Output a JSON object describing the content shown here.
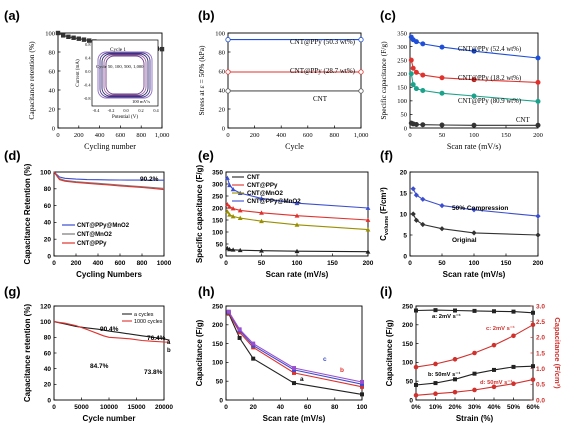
{
  "chart_data": [
    {
      "panel": "(a)",
      "type": "line",
      "xlabel": "Cycling number",
      "ylabel": "Capacitance retention (%)",
      "xlim": [
        0,
        1000
      ],
      "ylim": [
        0,
        100
      ],
      "xticks": [
        "0",
        "200",
        "400",
        "600",
        "800",
        "1,000"
      ],
      "yticks": [
        "0",
        "20",
        "40",
        "60",
        "80",
        "100"
      ],
      "series": [
        {
          "x": [
            0,
            50,
            100,
            150,
            200,
            250,
            300,
            350,
            400,
            450,
            500,
            550,
            600,
            650,
            700,
            750,
            800,
            850,
            900,
            950,
            1000
          ],
          "y": [
            100,
            97.5,
            96,
            95,
            94,
            93,
            92,
            91,
            90,
            89,
            88,
            87.5,
            87,
            86.5,
            86,
            85.5,
            85,
            84.5,
            84,
            83.5,
            83
          ],
          "color": "#333333"
        }
      ],
      "inset": {
        "xlabel": "Potential (V)",
        "ylabel": "Current (mA)",
        "xticks": [
          "-0.4",
          "-0.2",
          "0.0",
          "0.2",
          "0.4"
        ],
        "yticks": [
          "-0.8",
          "-0.4",
          "0.0",
          "0.4",
          "0.8"
        ],
        "annotations": [
          "Cycle 1",
          "Cycle 50, 100, 500, 1,000",
          "100 mV/s"
        ]
      }
    },
    {
      "panel": "(b)",
      "type": "line",
      "xlabel": "Cycle",
      "ylabel": "Stress at ε = 50% (kPa)",
      "xlim": [
        0,
        1000
      ],
      "ylim": [
        0,
        100
      ],
      "xticks": [
        "0",
        "200",
        "400",
        "600",
        "800",
        "1,000"
      ],
      "yticks": [
        "0",
        "20",
        "40",
        "60",
        "80",
        "100"
      ],
      "series": [
        {
          "name": "CNT@PPy (50.3 wt%)",
          "color": "#1f4fd8",
          "x": [
            0,
            1000
          ],
          "y": [
            93,
            93
          ]
        },
        {
          "name": "CNT@PPy (28.7 wt%)",
          "color": "#e0322d",
          "x": [
            0,
            1000
          ],
          "y": [
            59,
            59
          ]
        },
        {
          "name": "CNT",
          "color": "#555555",
          "x": [
            0,
            1000
          ],
          "y": [
            39,
            39
          ]
        }
      ]
    },
    {
      "panel": "(c)",
      "type": "line",
      "xlabel": "Scan rate (mV/s)",
      "ylabel": "Specific capacitance (F/g)",
      "xlim": [
        0,
        200
      ],
      "ylim": [
        0,
        350
      ],
      "xticks": [
        "0",
        "50",
        "100",
        "150",
        "200"
      ],
      "yticks": [
        "0",
        "50",
        "100",
        "150",
        "200",
        "250",
        "300",
        "350"
      ],
      "series": [
        {
          "name": "CNT@PPy (52.4 wt%)",
          "color": "#1f4fd8",
          "x": [
            2,
            5,
            10,
            20,
            50,
            100,
            200
          ],
          "y": [
            335,
            325,
            318,
            310,
            298,
            283,
            258
          ]
        },
        {
          "name": "CNT@PPy (18.2 wt%)",
          "color": "#e0322d",
          "x": [
            2,
            5,
            10,
            20,
            50,
            100,
            200
          ],
          "y": [
            250,
            220,
            205,
            195,
            185,
            178,
            168
          ]
        },
        {
          "name": "CNT@PPy (80.9 wt%)",
          "color": "#1aa38a",
          "x": [
            2,
            5,
            10,
            20,
            50,
            100,
            200
          ],
          "y": [
            200,
            160,
            145,
            138,
            128,
            118,
            98
          ]
        },
        {
          "name": "CNT",
          "color": "#333333",
          "x": [
            2,
            5,
            10,
            20,
            50,
            100,
            200
          ],
          "y": [
            18,
            15,
            13,
            12,
            11,
            10,
            10
          ]
        }
      ]
    },
    {
      "panel": "(d)",
      "type": "line",
      "xlabel": "Cycling Numbers",
      "ylabel": "Capacitance Retention (%)",
      "xlim": [
        0,
        1000
      ],
      "ylim": [
        0,
        100
      ],
      "xticks": [
        "0",
        "200",
        "400",
        "600",
        "800",
        "1000"
      ],
      "yticks": [
        "0",
        "20",
        "40",
        "60",
        "80",
        "100"
      ],
      "annotation": "90.2%",
      "series": [
        {
          "name": "CNT@PPy@MnO2",
          "color": "#3b4ecf",
          "x": [
            0,
            50,
            100,
            200,
            300,
            400,
            500,
            600,
            700,
            800,
            900,
            1000
          ],
          "y": [
            100,
            94,
            92.5,
            91.5,
            91,
            90.8,
            90.6,
            90.5,
            90.4,
            90.3,
            90.2,
            90.2
          ]
        },
        {
          "name": "CNT@MnO2",
          "color": "#7a7a7a",
          "x": [
            0,
            50,
            100,
            200,
            300,
            400,
            500,
            600,
            700,
            800,
            900,
            1000
          ],
          "y": [
            100,
            92,
            90,
            88.5,
            87.5,
            86.5,
            85.5,
            84.5,
            83.5,
            82.5,
            81.5,
            80.5
          ]
        },
        {
          "name": "CNT@PPy",
          "color": "#e0322d",
          "x": [
            0,
            50,
            100,
            200,
            300,
            400,
            500,
            600,
            700,
            800,
            900,
            1000
          ],
          "y": [
            100,
            91,
            89,
            87.5,
            86.5,
            85.5,
            84.5,
            83.5,
            82.5,
            81.5,
            80.5,
            79
          ]
        }
      ]
    },
    {
      "panel": "(e)",
      "type": "line",
      "xlabel": "Scan rate (mV/s)",
      "ylabel": "Specific capacitance (F/g)",
      "xlim": [
        0,
        200
      ],
      "ylim": [
        0,
        350
      ],
      "xticks": [
        "0",
        "50",
        "100",
        "150",
        "200"
      ],
      "yticks": [
        "0",
        "50",
        "100",
        "150",
        "200",
        "250",
        "300",
        "350"
      ],
      "series": [
        {
          "name": "CNT",
          "color": "#222222",
          "x": [
            2,
            5,
            10,
            20,
            50,
            100,
            200
          ],
          "y": [
            32,
            28,
            26,
            24,
            22,
            20,
            18
          ]
        },
        {
          "name": "CNT@PPy",
          "color": "#e0322d",
          "x": [
            2,
            5,
            10,
            20,
            50,
            100,
            200
          ],
          "y": [
            215,
            205,
            198,
            190,
            180,
            168,
            150
          ]
        },
        {
          "name": "CNT@MnO2",
          "color": "#9a8f00",
          "x": [
            2,
            5,
            10,
            20,
            50,
            100,
            200
          ],
          "y": [
            185,
            172,
            165,
            158,
            145,
            130,
            110
          ]
        },
        {
          "name": "CNT@PPy@MnO2",
          "color": "#3b4ecf",
          "x": [
            2,
            5,
            10,
            20,
            50,
            100,
            200
          ],
          "y": [
            325,
            295,
            278,
            262,
            240,
            220,
            200
          ]
        }
      ]
    },
    {
      "panel": "(f)",
      "type": "line",
      "xlabel": "Scan rate (mV/s)",
      "ylabel": "C_volume (F/cm³)",
      "ylabel_main": "C",
      "ylabel_sub": "volume",
      "ylabel_unit": "(F/cm³)",
      "xlim": [
        0,
        200
      ],
      "ylim": [
        0,
        20
      ],
      "xticks": [
        "0",
        "50",
        "100",
        "150",
        "200"
      ],
      "yticks": [
        "0",
        "5",
        "10",
        "15",
        "20"
      ],
      "series": [
        {
          "name": "50% Compression",
          "color": "#3b4ecf",
          "x": [
            5,
            10,
            20,
            50,
            100,
            200
          ],
          "y": [
            16,
            14.5,
            13.5,
            12,
            11,
            9.5
          ]
        },
        {
          "name": "Original",
          "color": "#333333",
          "x": [
            5,
            10,
            20,
            50,
            100,
            200
          ],
          "y": [
            10,
            8.5,
            7.5,
            6.5,
            5.5,
            5
          ]
        }
      ]
    },
    {
      "panel": "(g)",
      "type": "line",
      "xlabel": "Cycle number",
      "ylabel": "Capacitance retention (%)",
      "xlim": [
        0,
        20000
      ],
      "ylim": [
        0,
        120
      ],
      "xticks": [
        "0",
        "5000",
        "10000",
        "15000",
        "20000"
      ],
      "yticks": [
        "0",
        "20",
        "40",
        "60",
        "80",
        "100",
        "120"
      ],
      "annotations": [
        "90.4%",
        "76.4%",
        "84.7%",
        "73.8%",
        "a",
        "b"
      ],
      "series": [
        {
          "name": "a  cycles",
          "color": "#222222",
          "x": [
            0,
            2000,
            4000,
            6000,
            8000,
            10000,
            12000,
            14000,
            16000,
            18000,
            20000,
            21000
          ],
          "y": [
            100,
            97,
            94,
            92,
            90.4,
            88,
            86,
            84,
            82,
            80,
            78,
            76.4
          ]
        },
        {
          "name": "1000 cycles",
          "color": "#e0322d",
          "x": [
            0,
            2000,
            4000,
            6000,
            8000,
            9000,
            10000,
            12000,
            14000,
            16000,
            18000,
            20000,
            21000
          ],
          "y": [
            100,
            98,
            95,
            90,
            84.7,
            82,
            80,
            79,
            78,
            76,
            75,
            74,
            73.8
          ]
        }
      ]
    },
    {
      "panel": "(h)",
      "type": "line",
      "xlabel": "Scan rate (mV/s)",
      "ylabel": "Capacitance (F/g)",
      "xlim": [
        0,
        100
      ],
      "ylim": [
        0,
        250
      ],
      "xticks": [
        "0",
        "20",
        "40",
        "60",
        "80",
        "100"
      ],
      "yticks": [
        "0",
        "50",
        "100",
        "150",
        "200",
        "250"
      ],
      "series": [
        {
          "name": "a",
          "color": "#222222",
          "x": [
            2,
            10,
            20,
            50,
            100
          ],
          "y": [
            230,
            165,
            110,
            45,
            15
          ]
        },
        {
          "name": "b",
          "color": "#e0322d",
          "x": [
            2,
            10,
            20,
            50,
            100
          ],
          "y": [
            232,
            180,
            140,
            72,
            35
          ]
        },
        {
          "name": "c",
          "color": "#3b4ecf",
          "x": [
            2,
            10,
            20,
            50,
            100
          ],
          "y": [
            234,
            185,
            145,
            80,
            42
          ]
        },
        {
          "name": "",
          "color": "#9a4fcf",
          "x": [
            2,
            10,
            20,
            50,
            100
          ],
          "y": [
            235,
            188,
            150,
            85,
            48
          ]
        }
      ]
    },
    {
      "panel": "(i)",
      "type": "line",
      "xlabel": "Strain (%)",
      "ylabel": "Capacitance (F/g)",
      "ylabel_right": "Capacitance (F/cm³)",
      "xlim": [
        0,
        60
      ],
      "ylim": [
        0,
        250
      ],
      "ylim_right": [
        0,
        3.0
      ],
      "xticks": [
        "0%",
        "10%",
        "20%",
        "30%",
        "40%",
        "50%",
        "60%"
      ],
      "yticks": [
        "0",
        "50",
        "100",
        "150",
        "200",
        "250"
      ],
      "yticks_right": [
        "0.0",
        "0.5",
        "1.0",
        "1.5",
        "2.0",
        "2.5",
        "3.0"
      ],
      "annotations": [
        "a:  2mV s⁻¹",
        "b:  50mV s⁻¹",
        "c:  2mV s⁻¹",
        "d:  50mV s⁻¹"
      ],
      "series": [
        {
          "name": "a",
          "axis": "left",
          "color": "#222222",
          "x": [
            0,
            10,
            20,
            30,
            40,
            50,
            60
          ],
          "y": [
            238,
            239,
            238,
            237,
            236,
            235,
            232
          ]
        },
        {
          "name": "b",
          "axis": "left",
          "color": "#222222",
          "x": [
            0,
            10,
            20,
            30,
            40,
            50,
            60
          ],
          "y": [
            40,
            45,
            55,
            70,
            80,
            88,
            90
          ]
        },
        {
          "name": "c",
          "axis": "right",
          "color": "#d0312d",
          "x": [
            0,
            10,
            20,
            30,
            40,
            50,
            60
          ],
          "y": [
            1.05,
            1.15,
            1.3,
            1.5,
            1.75,
            2.05,
            2.4
          ]
        },
        {
          "name": "d",
          "axis": "right",
          "color": "#d0312d",
          "x": [
            0,
            10,
            20,
            30,
            40,
            50,
            60
          ],
          "y": [
            0.15,
            0.2,
            0.25,
            0.32,
            0.42,
            0.52,
            0.65
          ]
        }
      ]
    }
  ]
}
